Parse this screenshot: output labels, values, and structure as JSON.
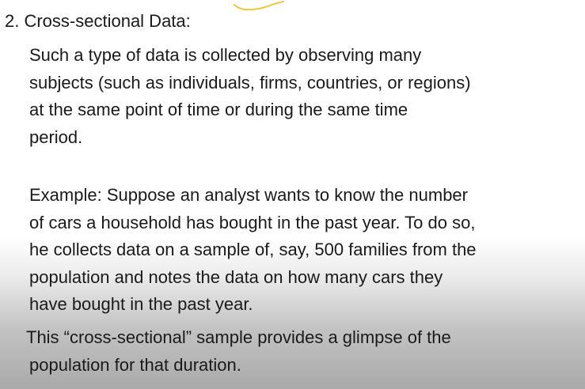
{
  "heading": "2. Cross-sectional Data:",
  "paragraphs": [
    {
      "lines": [
        "Such a type of data is collected by observing many",
        "subjects (such as individuals, firms, countries, or regions)",
        "at the same point of time or during the same time",
        "period."
      ]
    },
    {
      "lines": [
        "Example: Suppose an analyst wants to know the number",
        "of cars a household has bought in the past year. To do so,",
        "he collects data on a sample of, say, 500 families from the",
        "population and notes the data on how many cars they",
        "have bought in the past year."
      ]
    },
    {
      "lines": [
        "This “cross-sectional” sample provides a glimpse of the",
        "population for that duration."
      ]
    }
  ],
  "colors": {
    "text": "#1a1a1a",
    "annotation_ink": "#f2c640",
    "background": "#ffffff"
  }
}
